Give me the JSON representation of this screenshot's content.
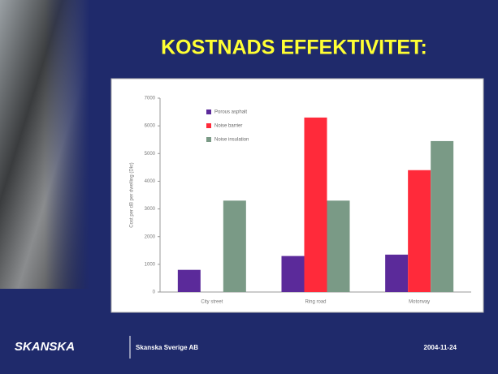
{
  "slide": {
    "title": "KOSTNADS EFFEKTIVITET:",
    "logo": "SKANSKA",
    "company": "Skanska Sverige AB",
    "date": "2004-11-24"
  },
  "chart_data": {
    "type": "bar",
    "y_label": "Cost per dB per dwelling (Dkr)",
    "categories": [
      "City street",
      "Ring road",
      "Motorway"
    ],
    "series": [
      {
        "name": "Porous asphalt",
        "color": "#5b2a9a",
        "values": [
          800,
          1300,
          1350
        ]
      },
      {
        "name": "Noise barrier",
        "color": "#ff2a3a",
        "values": [
          null,
          6300,
          4400
        ]
      },
      {
        "name": "Noise insulation",
        "color": "#7a9a86",
        "values": [
          3300,
          3300,
          5450
        ]
      }
    ],
    "ylim": [
      0,
      7000
    ],
    "yticks": [
      0,
      1000,
      2000,
      3000,
      4000,
      5000,
      6000,
      7000
    ],
    "legend": "top-left"
  }
}
